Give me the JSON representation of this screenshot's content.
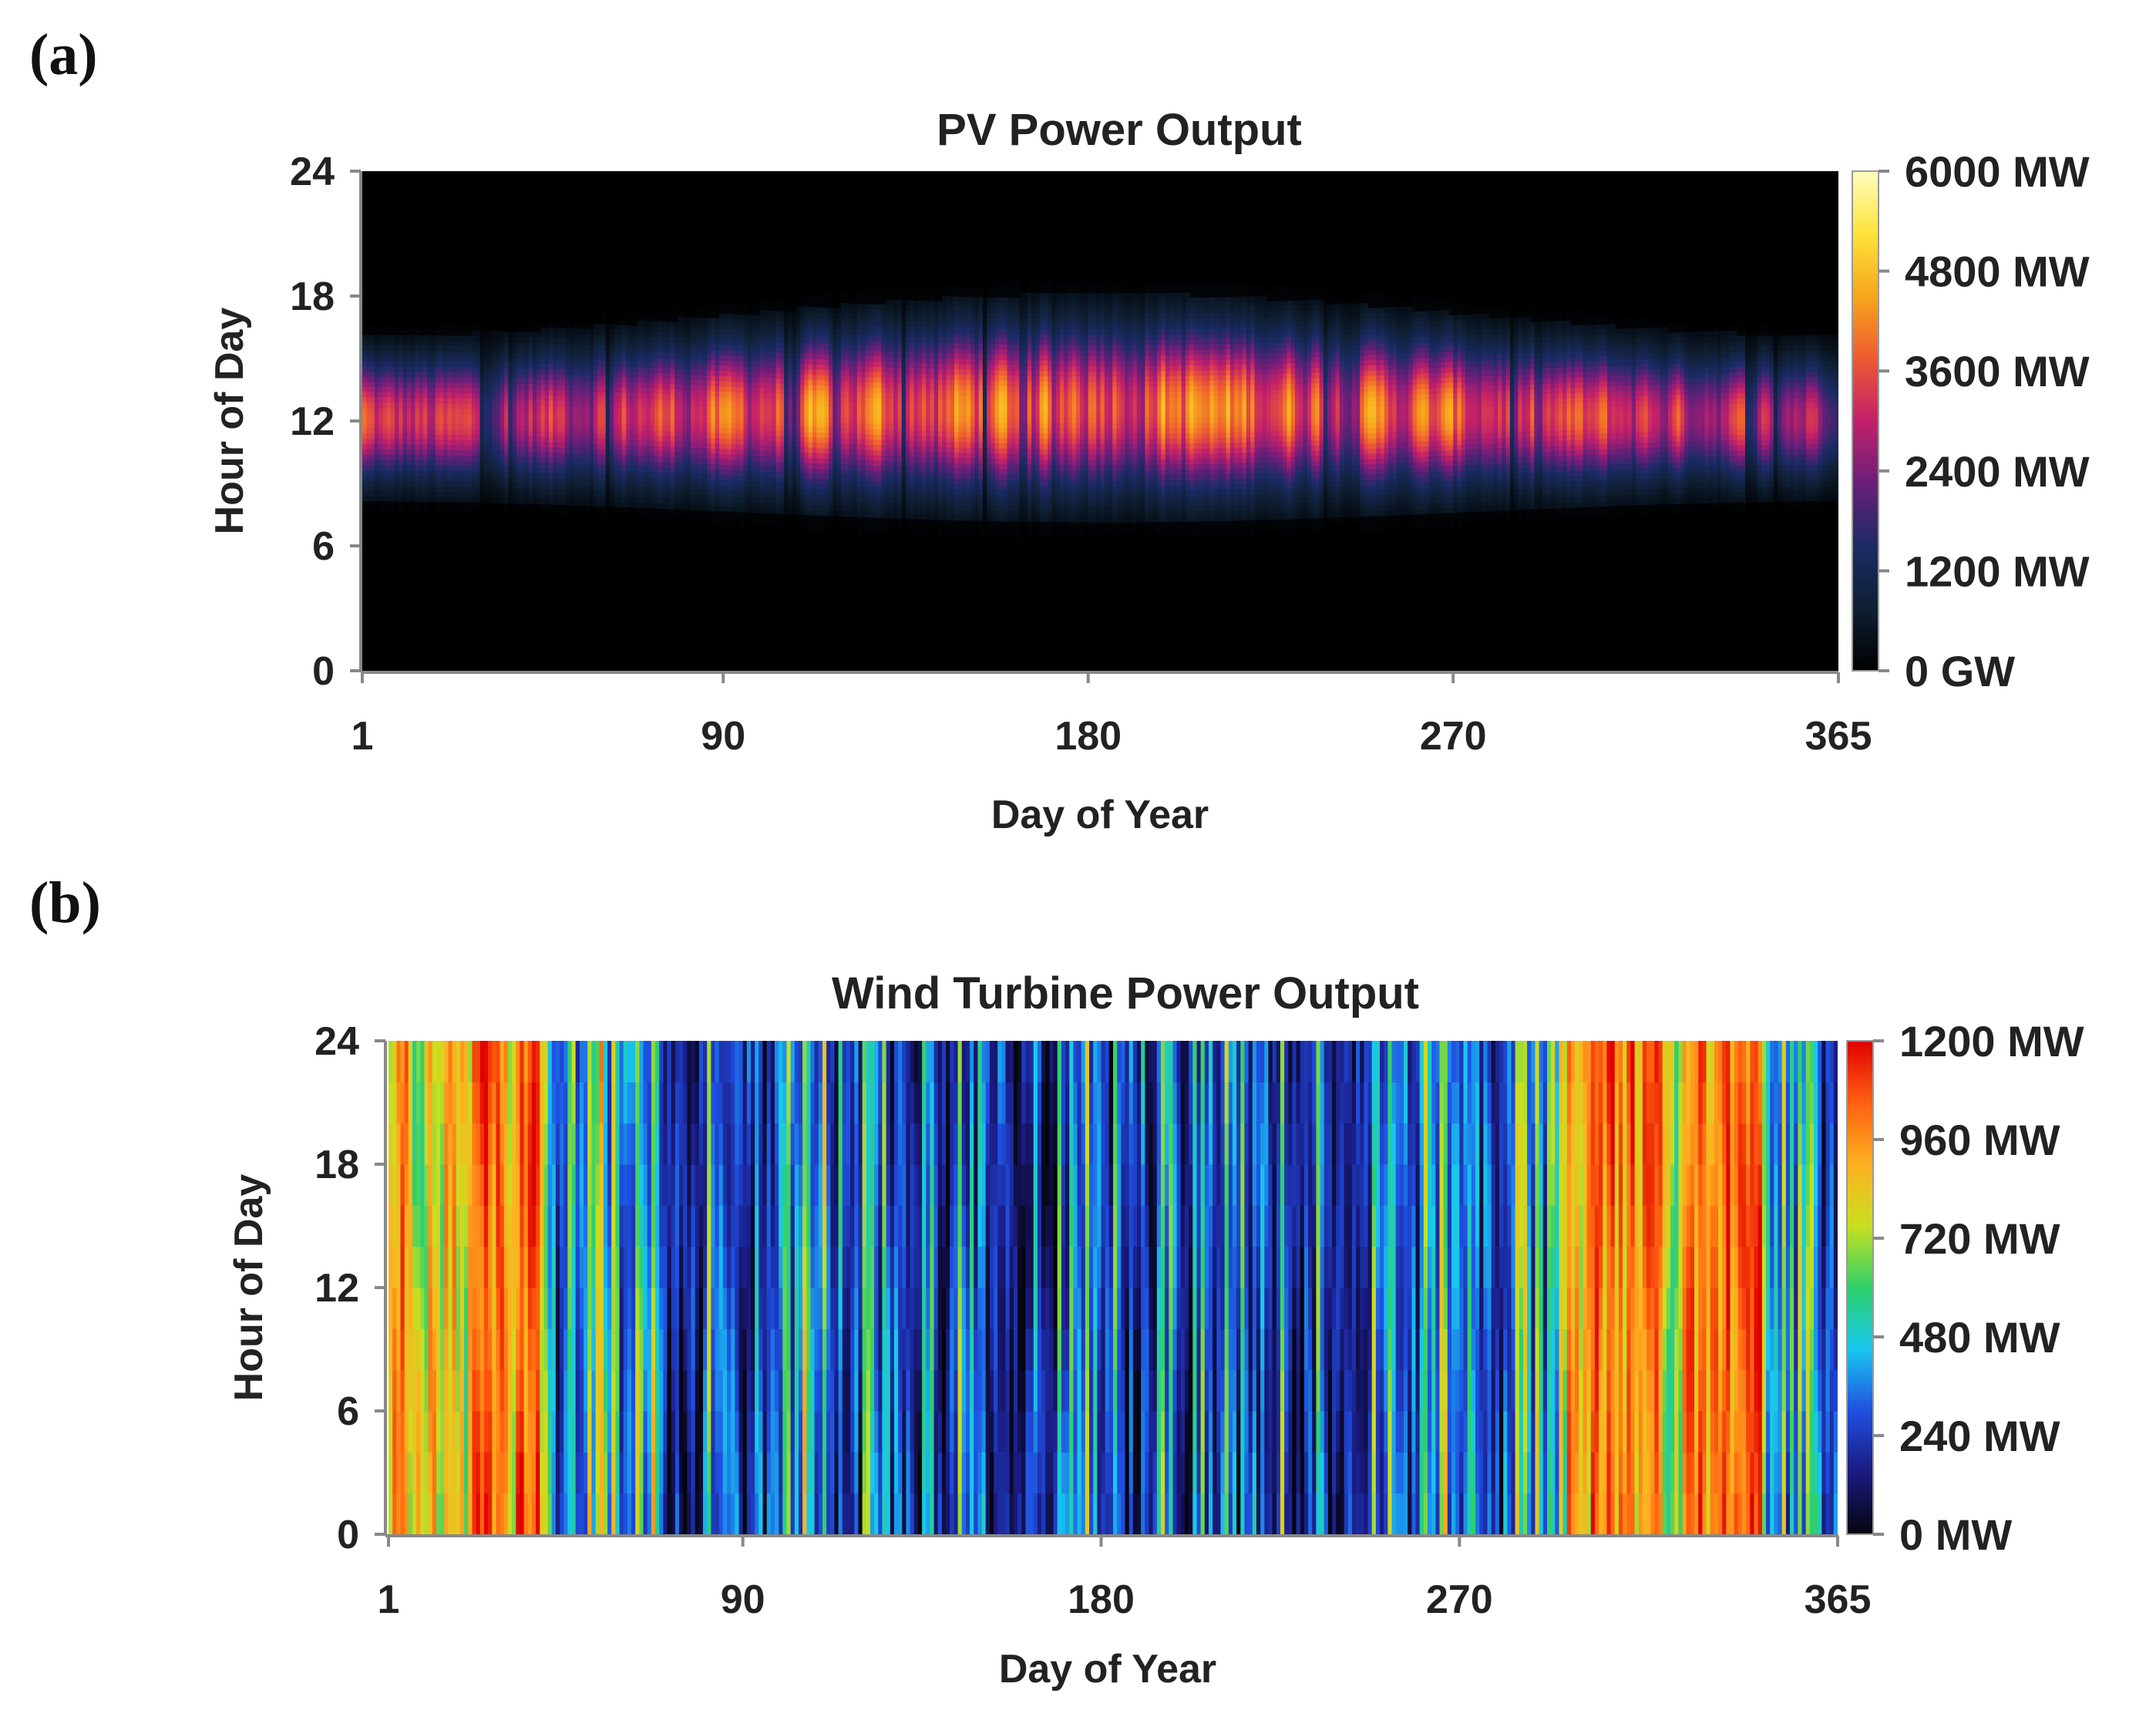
{
  "panel_labels": {
    "a": "(a)",
    "b": "(b)"
  },
  "chart_data": [
    {
      "id": "pv",
      "type": "heatmap",
      "title": "PV Power Output",
      "xlabel": "Day of Year",
      "ylabel": "Hour of Day",
      "x_ticks": [
        "1",
        "90",
        "180",
        "270",
        "365"
      ],
      "x_tick_values": [
        1,
        90,
        180,
        270,
        365
      ],
      "y_ticks": [
        "0",
        "6",
        "12",
        "18",
        "24"
      ],
      "y_tick_values": [
        0,
        6,
        12,
        18,
        24
      ],
      "xlim": [
        1,
        365
      ],
      "ylim": [
        0,
        24
      ],
      "colorbar": {
        "min": 0,
        "max": 6000,
        "unit": "MW",
        "labels": [
          "0 GW",
          "1200 MW",
          "2400 MW",
          "3600 MW",
          "4800 MW",
          "6000 MW"
        ],
        "values": [
          0,
          1200,
          2400,
          3600,
          4800,
          6000
        ],
        "colors": [
          "#000000",
          "#0f1f33",
          "#1b2b66",
          "#6a1f7a",
          "#c2206a",
          "#ee5a32",
          "#f7a61c",
          "#fde33a",
          "#fffdbf"
        ]
      },
      "pattern": {
        "peak_hour": 12,
        "sunrise_winter": 8,
        "sunrise_summer": 7,
        "sunset_winter": 16,
        "sunset_summer": 18,
        "peak_mw_range": [
          2600,
          6000
        ]
      }
    },
    {
      "id": "wind",
      "type": "heatmap",
      "title": "Wind Turbine Power Output",
      "xlabel": "Day of Year",
      "ylabel": "Hour of Day",
      "x_ticks": [
        "1",
        "90",
        "180",
        "270",
        "365"
      ],
      "x_tick_values": [
        1,
        90,
        180,
        270,
        365
      ],
      "y_ticks": [
        "0",
        "6",
        "12",
        "18",
        "24"
      ],
      "y_tick_values": [
        0,
        6,
        12,
        18,
        24
      ],
      "xlim": [
        1,
        365
      ],
      "ylim": [
        0,
        24
      ],
      "colorbar": {
        "min": 0,
        "max": 1200,
        "unit": "MW",
        "labels": [
          "0 MW",
          "240 MW",
          "480 MW",
          "720 MW",
          "960 MW",
          "1200 MW"
        ],
        "values": [
          0,
          240,
          480,
          720,
          960,
          1200
        ],
        "colors": [
          "#05050f",
          "#1a1a80",
          "#1f4fe0",
          "#18c8f0",
          "#2ed06a",
          "#c8e020",
          "#ffb020",
          "#ff6010",
          "#e00000"
        ]
      },
      "pattern": {
        "high_output_periods": [
          [
            1,
            38
          ],
          [
            295,
            345
          ]
        ],
        "low_output_period": [
          110,
          250
        ]
      }
    }
  ]
}
